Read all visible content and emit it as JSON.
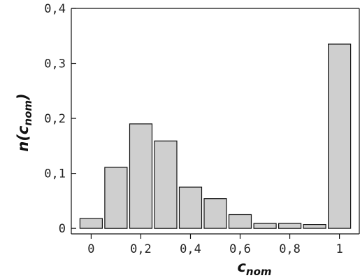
{
  "chart_data": {
    "type": "bar",
    "x": [
      0.0,
      0.1,
      0.2,
      0.3,
      0.4,
      0.5,
      0.6,
      0.7,
      0.8,
      0.9,
      1.0
    ],
    "values": [
      0.018,
      0.111,
      0.19,
      0.159,
      0.075,
      0.054,
      0.025,
      0.009,
      0.009,
      0.007,
      0.335
    ],
    "xlabel": {
      "main": "c",
      "sub": "nom"
    },
    "ylabel": {
      "pre": "n(",
      "main": "c",
      "sub": "nom",
      "post": ")"
    },
    "xlim": [
      -0.08,
      1.08
    ],
    "ylim": [
      -0.01,
      0.4
    ],
    "xticks": [
      {
        "value": 0,
        "label": "0"
      },
      {
        "value": 0.2,
        "label": "0,2"
      },
      {
        "value": 0.4,
        "label": "0,4"
      },
      {
        "value": 0.6,
        "label": "0,6"
      },
      {
        "value": 0.8,
        "label": "0,8"
      },
      {
        "value": 1.0,
        "label": "1"
      }
    ],
    "yticks": [
      {
        "value": 0,
        "label": "0"
      },
      {
        "value": 0.1,
        "label": "0,1"
      },
      {
        "value": 0.2,
        "label": "0,2"
      },
      {
        "value": 0.3,
        "label": "0,3"
      },
      {
        "value": 0.4,
        "label": "0,4"
      }
    ],
    "grid": false,
    "colors": {
      "bar_fill": "#cfcfcf",
      "bar_stroke": "#111111"
    }
  }
}
